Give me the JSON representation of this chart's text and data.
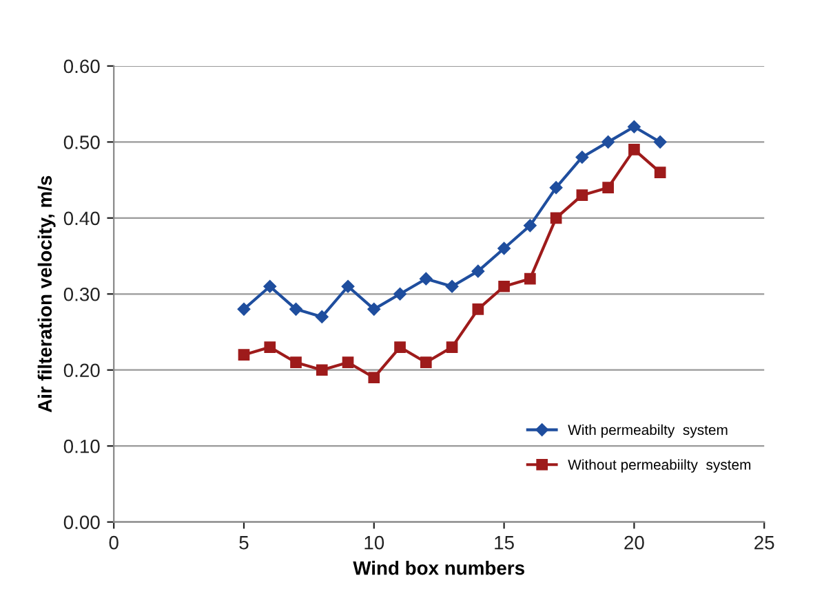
{
  "chart_data": {
    "type": "line",
    "xlabel": "Wind box numbers",
    "ylabel": "Air filteration velocity, m/s",
    "x": [
      5,
      6,
      7,
      8,
      9,
      10,
      11,
      12,
      13,
      14,
      15,
      16,
      17,
      18,
      19,
      20,
      21
    ],
    "series": [
      {
        "name": "With permeabilty  system",
        "color": "#1f4e9e",
        "marker": "diamond",
        "values": [
          0.28,
          0.31,
          0.28,
          0.27,
          0.31,
          0.28,
          0.3,
          0.32,
          0.31,
          0.33,
          0.36,
          0.39,
          0.44,
          0.48,
          0.5,
          0.52,
          0.5
        ]
      },
      {
        "name": "Without permeabiilty  system",
        "color": "#9e1b1b",
        "marker": "square",
        "values": [
          0.22,
          0.23,
          0.21,
          0.2,
          0.21,
          0.19,
          0.23,
          0.21,
          0.23,
          0.28,
          0.31,
          0.32,
          0.4,
          0.43,
          0.44,
          0.49,
          0.46
        ]
      }
    ],
    "xlim": [
      0,
      25
    ],
    "xticks": [
      0,
      5,
      10,
      15,
      20,
      25
    ],
    "ylim": [
      0,
      0.6
    ],
    "yticks": [
      {
        "value": 0,
        "label": "0.00"
      },
      {
        "value": 0.1,
        "label": "0.10"
      },
      {
        "value": 0.2,
        "label": "0.20"
      },
      {
        "value": 0.3,
        "label": "0.30"
      },
      {
        "value": 0.4,
        "label": "0.40"
      },
      {
        "value": 0.5,
        "label": "0.50"
      },
      {
        "value": 0.6,
        "label": "0.60"
      }
    ],
    "grid": "y",
    "legend": "bottom right",
    "line_style": "solid"
  }
}
